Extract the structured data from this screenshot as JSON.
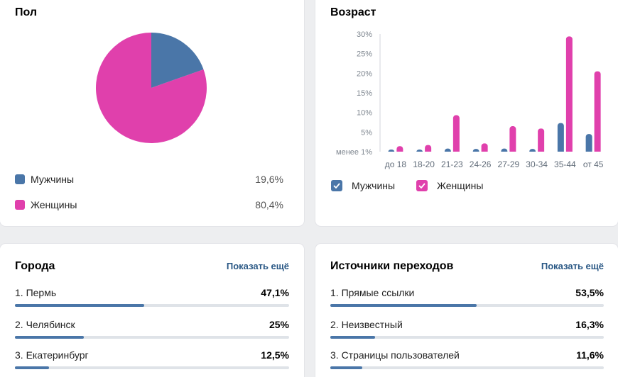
{
  "colors": {
    "men": "#4a76a8",
    "women": "#e040ac",
    "link": "#2a5885",
    "track": "#dfe3e8"
  },
  "gender": {
    "title": "Пол",
    "items": [
      {
        "label": "Мужчины",
        "value": "19,6%"
      },
      {
        "label": "Женщины",
        "value": "80,4%"
      }
    ],
    "chart_data": {
      "type": "pie",
      "labels": [
        "Мужчины",
        "Женщины"
      ],
      "values": [
        19.6,
        80.4
      ]
    }
  },
  "age": {
    "title": "Возраст",
    "legend": [
      {
        "label": "Мужчины"
      },
      {
        "label": "Женщины"
      }
    ],
    "chart_data": {
      "type": "bar",
      "categories": [
        "до 18",
        "18-20",
        "21-23",
        "24-26",
        "27-29",
        "30-34",
        "35-44",
        "от 45"
      ],
      "series": [
        {
          "name": "Мужчины",
          "values": [
            0.4,
            0.3,
            0.8,
            0.7,
            0.8,
            0.7,
            7.3,
            4.5
          ]
        },
        {
          "name": "Женщины",
          "values": [
            1.4,
            1.7,
            9.3,
            2.1,
            6.5,
            5.9,
            29.4,
            20.5
          ]
        }
      ],
      "yticks": [
        "менее 1%",
        "5%",
        "10%",
        "15%",
        "20%",
        "25%",
        "30%"
      ],
      "ylim": [
        0,
        30
      ],
      "grid": false,
      "legend_position": "bottom-left"
    }
  },
  "cities": {
    "title": "Города",
    "show_more": "Показать ещё",
    "rows": [
      {
        "label": "1. Пермь",
        "value": "47,1%",
        "fraction": 0.471
      },
      {
        "label": "2. Челябинск",
        "value": "25%",
        "fraction": 0.25
      },
      {
        "label": "3. Екатеринбург",
        "value": "12,5%",
        "fraction": 0.125
      }
    ]
  },
  "sources": {
    "title": "Источники переходов",
    "show_more": "Показать ещё",
    "rows": [
      {
        "label": "1. Прямые ссылки",
        "value": "53,5%",
        "fraction": 0.535
      },
      {
        "label": "2. Неизвестный",
        "value": "16,3%",
        "fraction": 0.163
      },
      {
        "label": "3. Страницы пользователей",
        "value": "11,6%",
        "fraction": 0.116
      }
    ]
  }
}
